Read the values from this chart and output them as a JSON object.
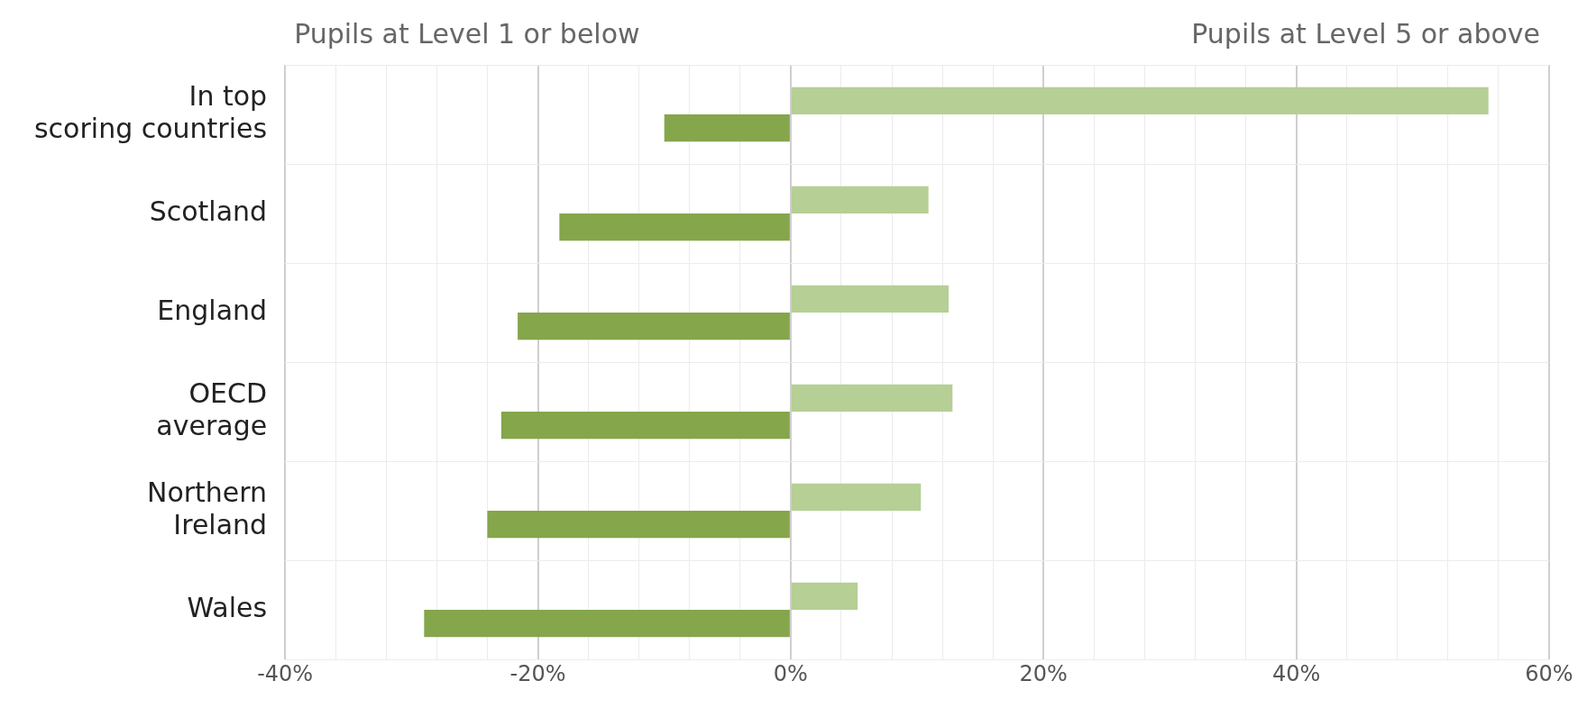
{
  "chart_data": {
    "type": "bar",
    "orientation": "horizontal",
    "categories": [
      "In top scoring countries",
      "Scotland",
      "England",
      "OECD average",
      "Northern Ireland",
      "Wales"
    ],
    "series": [
      {
        "color": "#b5cf95",
        "values": [
          55.2,
          10.9,
          12.5,
          12.8,
          10.3,
          5.3
        ]
      },
      {
        "color": "#85a64b",
        "values": [
          -10,
          -18.3,
          -21.6,
          -22.9,
          -24,
          -29
        ]
      }
    ],
    "xlim": [
      -40,
      60
    ],
    "xticks": [
      {
        "value": -40,
        "label": "-40%"
      },
      {
        "value": -36,
        "label": null
      },
      {
        "value": -32,
        "label": null
      },
      {
        "value": -28,
        "label": null
      },
      {
        "value": -24,
        "label": null
      },
      {
        "value": -20,
        "label": "-20%"
      },
      {
        "value": -16,
        "label": null
      },
      {
        "value": -12,
        "label": null
      },
      {
        "value": -8,
        "label": null
      },
      {
        "value": -4,
        "label": null
      },
      {
        "value": 0,
        "label": "0%"
      },
      {
        "value": 4,
        "label": null
      },
      {
        "value": 8,
        "label": null
      },
      {
        "value": 12,
        "label": null
      },
      {
        "value": 16,
        "label": null
      },
      {
        "value": 20,
        "label": "20%"
      },
      {
        "value": 24,
        "label": null
      },
      {
        "value": 28,
        "label": null
      },
      {
        "value": 32,
        "label": null
      },
      {
        "value": 36,
        "label": null
      },
      {
        "value": 40,
        "label": "40%"
      },
      {
        "value": 44,
        "label": null
      },
      {
        "value": 48,
        "label": null
      },
      {
        "value": 52,
        "label": null
      },
      {
        "value": 56,
        "label": null
      },
      {
        "value": 60,
        "label": "60%"
      }
    ],
    "grid": true,
    "annotations": [
      "Pupils at Level 1 or below",
      "Pupils at Level 5 or above"
    ]
  }
}
